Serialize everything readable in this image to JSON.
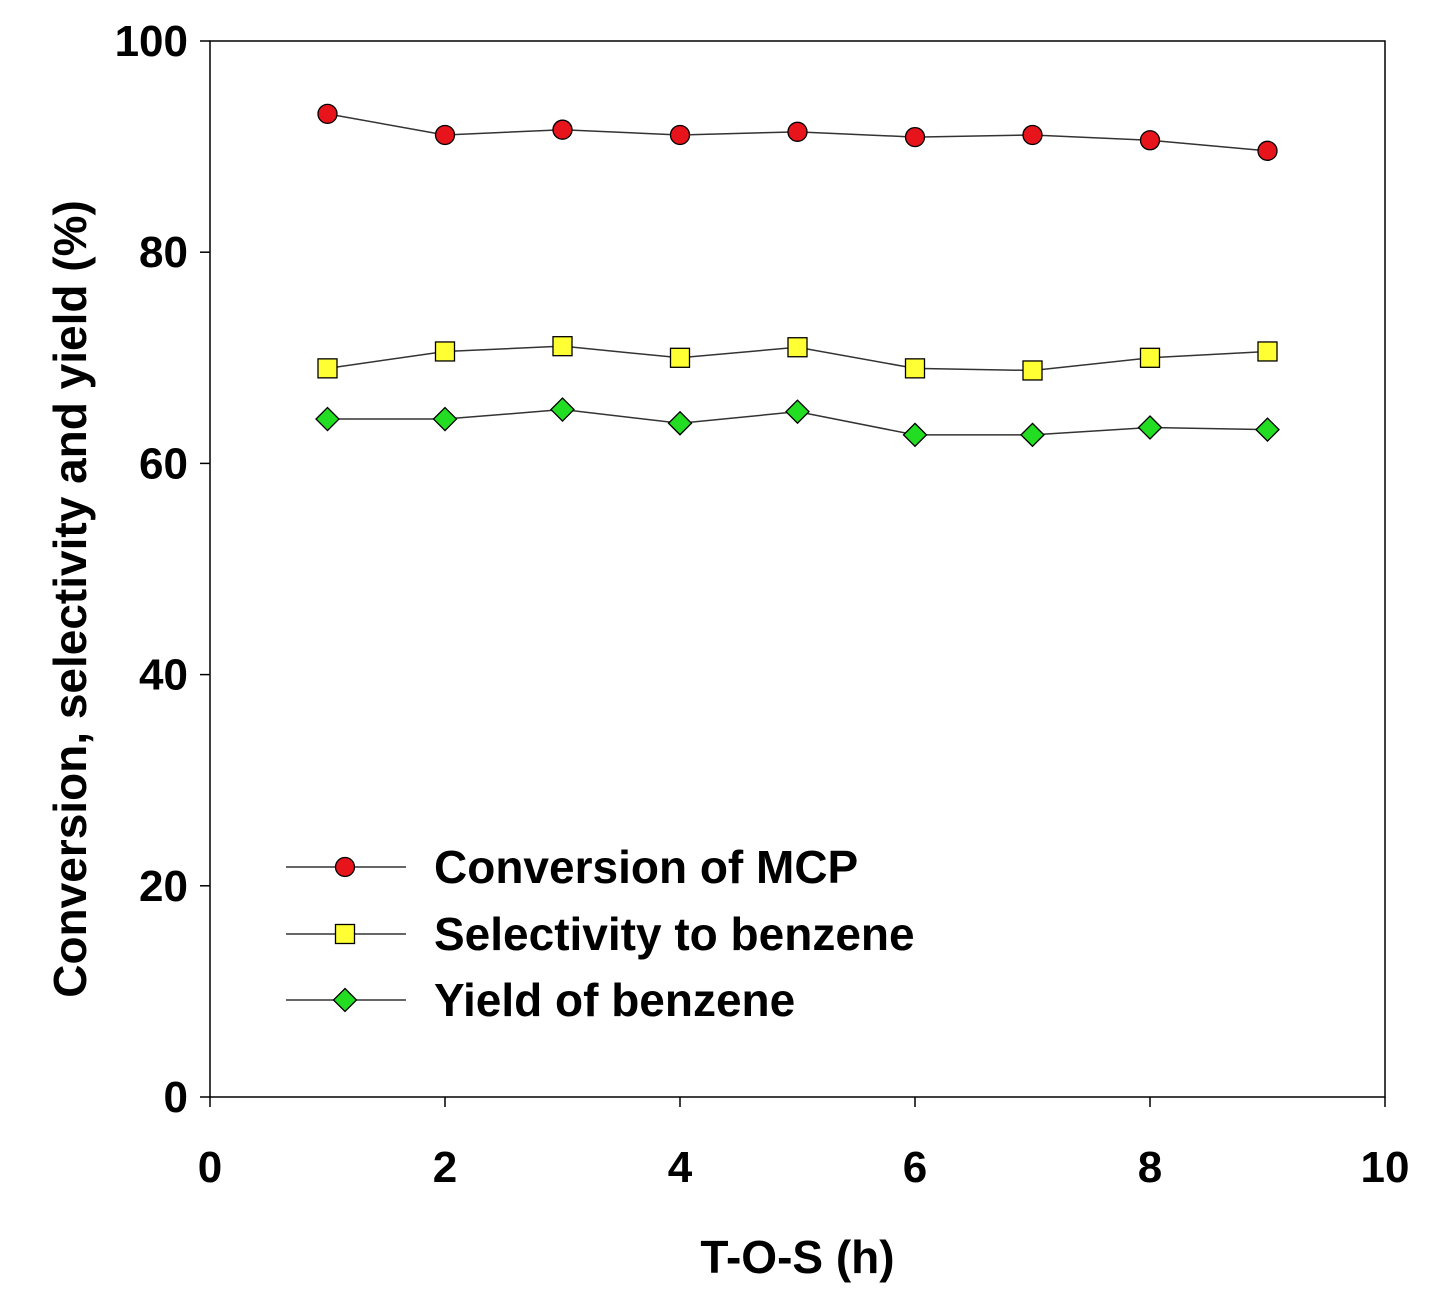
{
  "chart_data": {
    "type": "line",
    "title": "",
    "xlabel": "T-O-S (h)",
    "ylabel": "Conversion, selectivity and yield (%)",
    "xlim": [
      0,
      10
    ],
    "ylim": [
      0,
      100
    ],
    "xticks": [
      0,
      2,
      4,
      6,
      8,
      10
    ],
    "yticks": [
      0,
      20,
      40,
      60,
      80,
      100
    ],
    "grid": false,
    "legend_position": "lower-left",
    "x": [
      1,
      2,
      3,
      4,
      5,
      6,
      7,
      8,
      9
    ],
    "series": [
      {
        "name": "Conversion of MCP",
        "marker": "circle",
        "color": "#e8141c",
        "values": [
          93.1,
          91.1,
          91.6,
          91.1,
          91.4,
          90.9,
          91.1,
          90.6,
          89.6
        ]
      },
      {
        "name": "Selectivity to benzene",
        "marker": "square",
        "color": "#ffff33",
        "values": [
          69.0,
          70.6,
          71.1,
          70.0,
          71.0,
          69.0,
          68.8,
          70.0,
          70.6
        ]
      },
      {
        "name": "Yield of benzene",
        "marker": "diamond",
        "color": "#22dd22",
        "values": [
          64.2,
          64.2,
          65.1,
          63.8,
          64.9,
          62.7,
          62.7,
          63.4,
          63.2
        ]
      }
    ],
    "line_color": "#333333"
  }
}
